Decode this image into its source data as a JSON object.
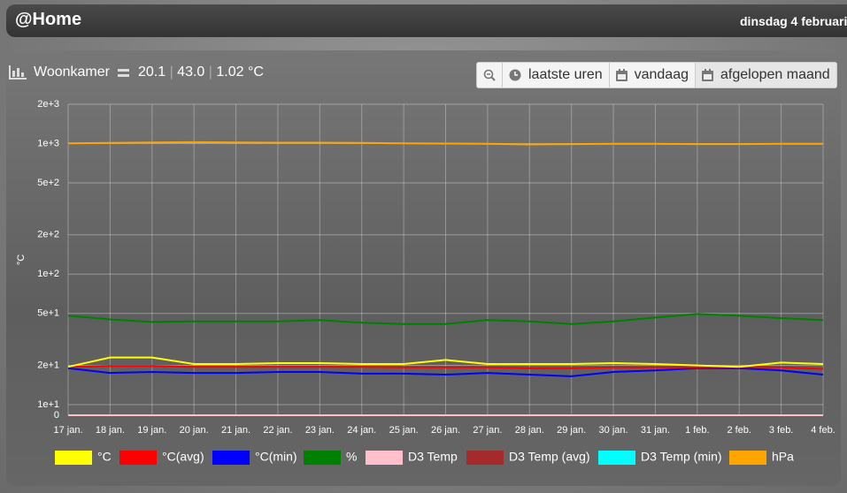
{
  "header": {
    "title": "@Home",
    "date": "dinsdag 4 februari"
  },
  "panel": {
    "title": "Woonkamer",
    "readings": [
      "20.1",
      "43.0",
      "1.02 °C"
    ],
    "separator": "|",
    "buttons": [
      "laatste uren",
      "vandaag",
      "afgelopen maand"
    ]
  },
  "chart_data": {
    "type": "line",
    "y_scale": "log",
    "ylabel": "°C",
    "grid": true,
    "categories": [
      "17 jan.",
      "18 jan.",
      "19 jan.",
      "20 jan.",
      "21 jan.",
      "22 jan.",
      "23 jan.",
      "24 jan.",
      "25 jan.",
      "26 jan.",
      "27 jan.",
      "28 jan.",
      "29 jan.",
      "30 jan.",
      "31 jan.",
      "1 feb.",
      "2 feb.",
      "3 feb.",
      "4 feb."
    ],
    "ylim": [
      8.3,
      2000
    ],
    "yticks": [
      0,
      {
        "value": 10,
        "label": "1e+1"
      },
      {
        "value": 20,
        "label": "2e+1"
      },
      {
        "value": 50,
        "label": "5e+1"
      },
      {
        "value": 100,
        "label": "1e+2"
      },
      {
        "value": 200,
        "label": "2e+2"
      },
      {
        "value": 500,
        "label": "5e+2"
      },
      {
        "value": 1000,
        "label": "1e+3"
      },
      {
        "value": 2000,
        "label": "2e+3"
      }
    ],
    "series": [
      {
        "name": "°C",
        "color": "#ffff00",
        "values": [
          19.5,
          23,
          23,
          20.5,
          20.5,
          20.8,
          20.8,
          20.5,
          20.5,
          22,
          20.5,
          20.5,
          20.5,
          20.8,
          20.5,
          20,
          19.5,
          21,
          20.5
        ]
      },
      {
        "name": "°C(avg)",
        "color": "#ff0000",
        "values": [
          19.5,
          19.8,
          19.8,
          19.5,
          19.5,
          19.5,
          19.5,
          19.5,
          19.3,
          19.3,
          19.3,
          19,
          19,
          19.3,
          19.3,
          19.3,
          19.5,
          19.3,
          18.8
        ]
      },
      {
        "name": "°C(min)",
        "color": "#0000ff",
        "values": [
          19,
          17.5,
          17.8,
          17.5,
          17.5,
          17.8,
          17.8,
          17.3,
          17.3,
          17,
          17.5,
          17,
          16.5,
          17.8,
          18.3,
          19,
          19,
          18.3,
          17
        ]
      },
      {
        "name": "%",
        "color": "#008000",
        "values": [
          48,
          45,
          43,
          43.5,
          43.5,
          43.5,
          44.5,
          42.5,
          41.5,
          41.5,
          44.5,
          43.5,
          41.5,
          43.5,
          46.5,
          49.5,
          48,
          46,
          44.5
        ]
      },
      {
        "name": "D3 Temp",
        "color": "#ffc0cb",
        "values": [
          0,
          0,
          0,
          0,
          0,
          0,
          0,
          0,
          0,
          0,
          0,
          0,
          0,
          0,
          0,
          0,
          0,
          0,
          0
        ]
      },
      {
        "name": "D3 Temp (avg)",
        "color": "#a52a2a",
        "values": [
          0,
          0,
          0,
          0,
          0,
          0,
          0,
          0,
          0,
          0,
          0,
          0,
          0,
          0,
          0,
          0,
          0,
          0,
          0
        ]
      },
      {
        "name": "D3 Temp (min)",
        "color": "#00ffff",
        "values": [
          0,
          0,
          0,
          0,
          0,
          0,
          0,
          0,
          0,
          0,
          0,
          0,
          0,
          0,
          0,
          0,
          0,
          0,
          0
        ]
      },
      {
        "name": "hPa",
        "color": "#ffa500",
        "values": [
          1005,
          1010,
          1020,
          1025,
          1020,
          1015,
          1015,
          1010,
          1005,
          1000,
          995,
          985,
          990,
          995,
          995,
          990,
          990,
          995,
          995
        ]
      }
    ]
  }
}
